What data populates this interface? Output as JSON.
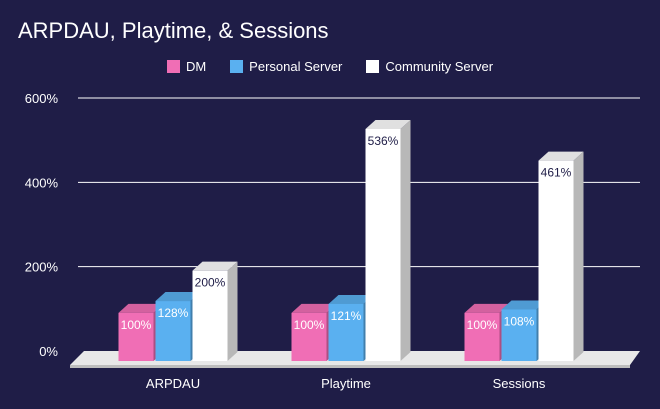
{
  "chart_data": {
    "type": "bar",
    "title": "ARPDAU, Playtime, & Sessions",
    "categories": [
      "ARPDAU",
      "Playtime",
      "Sessions"
    ],
    "series": [
      {
        "name": "DM",
        "values": [
          100,
          100,
          100
        ],
        "labels": [
          "100%",
          "100%",
          "100%"
        ],
        "color": "#f06eb5"
      },
      {
        "name": "Personal Server",
        "values": [
          128,
          121,
          108
        ],
        "labels": [
          "128%",
          "121%",
          "108%"
        ],
        "color": "#5ab0f0"
      },
      {
        "name": "Community Server",
        "values": [
          200,
          536,
          461
        ],
        "labels": [
          "200%",
          "536%",
          "461%"
        ],
        "color": "#ffffff"
      }
    ],
    "yticks": [
      "0%",
      "200%",
      "400%",
      "600%"
    ],
    "ytick_values": [
      0,
      200,
      400,
      600
    ],
    "ylim": [
      0,
      600
    ],
    "grid": true,
    "legend_position": "top-center",
    "style": "3d-bar"
  }
}
